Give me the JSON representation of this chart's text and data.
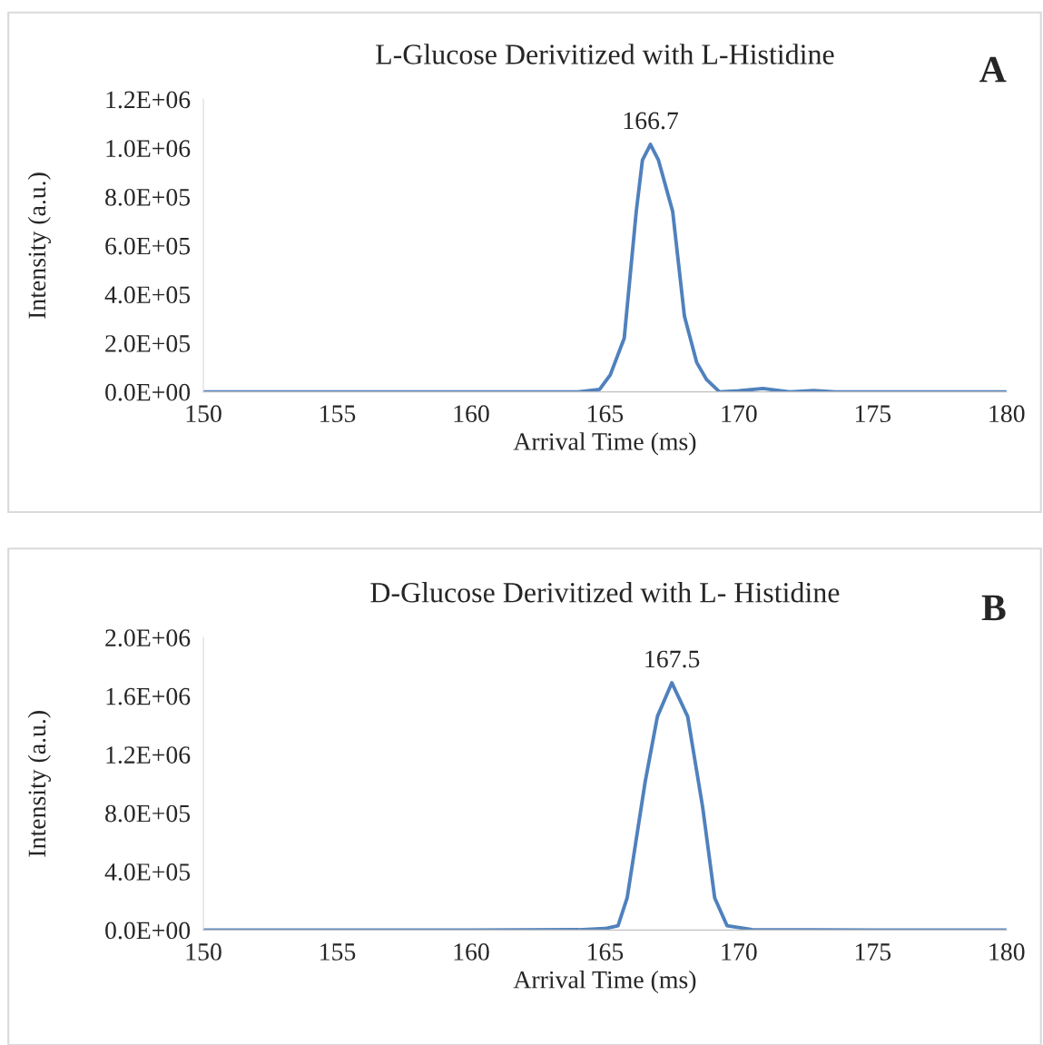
{
  "chart_data": [
    {
      "type": "line",
      "title": "L-Glucose Derivitized with L-Histidine",
      "xlabel": "Arrival Time (ms)",
      "ylabel": "Intensity (a.u.)",
      "x": [
        150,
        155,
        160,
        164,
        164.8,
        165.2,
        165.72,
        166.17,
        166.4,
        166.7,
        167.0,
        167.53,
        167.97,
        168.43,
        168.8,
        169.28,
        170.0,
        170.9,
        171.9,
        172.8,
        173.6,
        175,
        180
      ],
      "series": [
        {
          "color": "#4f81bd",
          "values": [
            0,
            0,
            0,
            0,
            10000.0,
            70000.0,
            220000.0,
            740000.0,
            950000.0,
            1015000.0,
            950000.0,
            740000.0,
            310000.0,
            120000.0,
            50000.0,
            0,
            4000.0,
            14000.0,
            0,
            5000.0,
            0,
            0,
            0
          ]
        }
      ],
      "xlim": [
        150,
        180
      ],
      "xticks": [
        150,
        155,
        160,
        165,
        170,
        175,
        180
      ],
      "ylim": [
        0,
        1200000
      ],
      "yticks": [
        {
          "value": 0,
          "label": "0.0E+00"
        },
        {
          "value": 200000,
          "label": "2.0E+05"
        },
        {
          "value": 400000,
          "label": "4.0E+05"
        },
        {
          "value": 600000,
          "label": "6.0E+05"
        },
        {
          "value": 800000,
          "label": "8.0E+05"
        },
        {
          "value": 1000000,
          "label": "1.0E+06"
        },
        {
          "value": 1200000,
          "label": "1.2E+06"
        }
      ],
      "grid": false,
      "legend": false,
      "marker": "none",
      "line_style": "solid",
      "annotations": [
        {
          "text": "166.7",
          "x": 166.7,
          "y": 1015000
        },
        "A"
      ]
    },
    {
      "type": "line",
      "title": "D-Glucose Derivitized with L- Histidine",
      "xlabel": "Arrival Time (ms)",
      "ylabel": "Intensity (a.u.)",
      "x": [
        150,
        155,
        160,
        164,
        165.0,
        165.49,
        165.83,
        166.5,
        166.96,
        167.5,
        168.09,
        168.65,
        169.1,
        169.56,
        170.5,
        175,
        180
      ],
      "series": [
        {
          "color": "#4f81bd",
          "values": [
            0,
            0,
            0,
            2000.0,
            10000.0,
            30000.0,
            220000.0,
            1010000.0,
            1460000.0,
            1690000.0,
            1460000.0,
            840000.0,
            220000.0,
            30000.0,
            3000.0,
            0,
            0
          ]
        }
      ],
      "xlim": [
        150,
        180
      ],
      "xticks": [
        150,
        155,
        160,
        165,
        170,
        175,
        180
      ],
      "ylim": [
        0,
        2000000
      ],
      "yticks": [
        {
          "value": 0,
          "label": "0.0E+00"
        },
        {
          "value": 400000,
          "label": "4.0E+05"
        },
        {
          "value": 800000,
          "label": "8.0E+05"
        },
        {
          "value": 1200000,
          "label": "1.2E+06"
        },
        {
          "value": 1600000,
          "label": "1.6E+06"
        },
        {
          "value": 2000000,
          "label": "2.0E+06"
        }
      ],
      "grid": false,
      "legend": false,
      "marker": "none",
      "line_style": "solid",
      "annotations": [
        {
          "text": "167.5",
          "x": 167.5,
          "y": 1690000
        },
        "B"
      ]
    }
  ]
}
